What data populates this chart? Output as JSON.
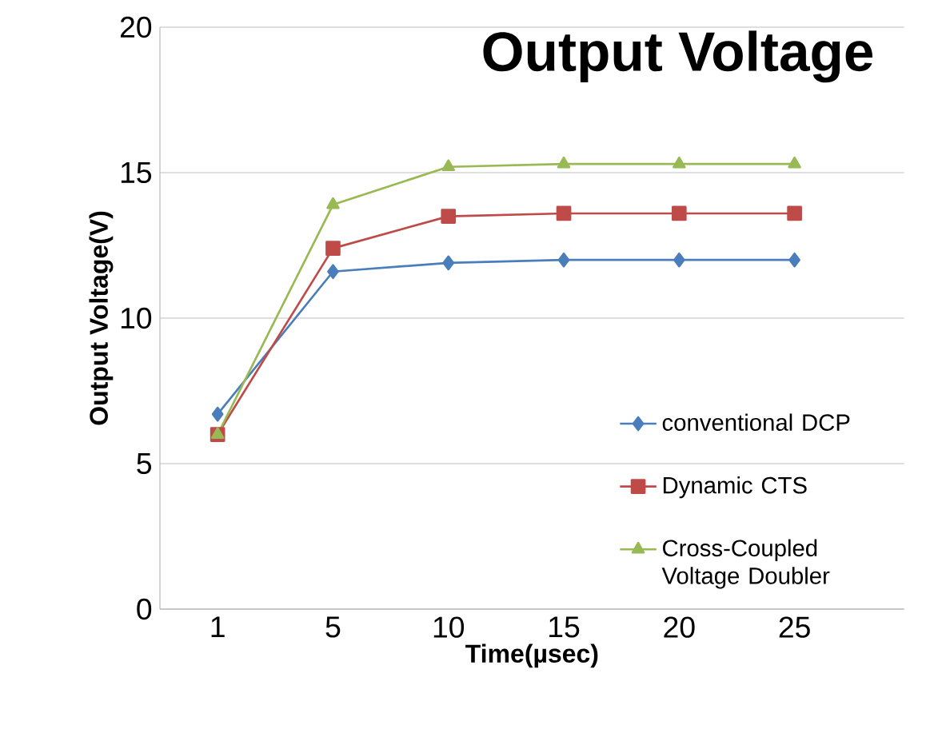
{
  "chart_data": {
    "type": "line",
    "title": "Output Voltage",
    "xlabel": "Time(µsec)",
    "ylabel": "Output Voltage(V)",
    "categories": [
      "1",
      "5",
      "10",
      "15",
      "20",
      "25"
    ],
    "series": [
      {
        "name": "conventional DCP",
        "color": "#4a7ebb",
        "marker": "diamond",
        "values": [
          6.7,
          11.6,
          11.9,
          12.0,
          12.0,
          12.0
        ]
      },
      {
        "name": "Dynamic CTS",
        "color": "#be4b48",
        "marker": "square",
        "values": [
          6.0,
          12.4,
          13.5,
          13.6,
          13.6,
          13.6
        ]
      },
      {
        "name": "Cross-Coupled Voltage Doubler",
        "color": "#98b954",
        "marker": "triangle",
        "values": [
          6.0,
          13.9,
          15.2,
          15.3,
          15.3,
          15.3
        ]
      }
    ],
    "ylim": [
      0,
      20
    ],
    "yticks": [
      0,
      5,
      10,
      15,
      20
    ],
    "grid": "y",
    "legend": "right",
    "line_style": "solid"
  }
}
